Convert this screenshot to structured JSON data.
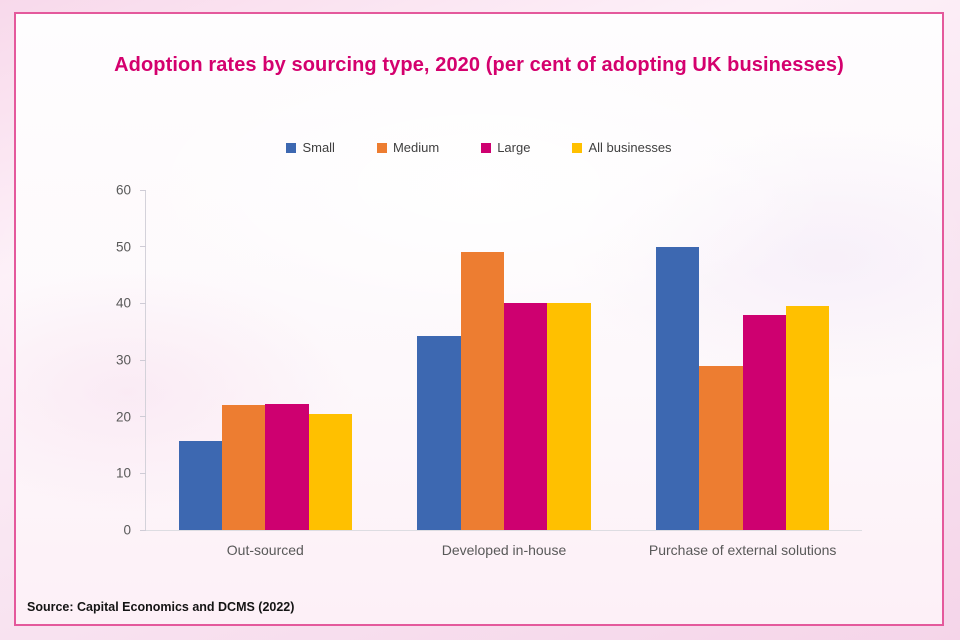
{
  "chart_data": {
    "type": "bar",
    "title": "Adoption rates by sourcing type, 2020 (per cent of adopting UK businesses)",
    "source": "Source: Capital Economics and DCMS (2022)",
    "categories": [
      "Out-sourced",
      "Developed in-house",
      "Purchase of external solutions"
    ],
    "series": [
      {
        "name": "Small",
        "color": "#3d68b1",
        "values": [
          15.7,
          34.3,
          50
        ]
      },
      {
        "name": "Medium",
        "color": "#ed7d31",
        "values": [
          22,
          49,
          29
        ]
      },
      {
        "name": "Large",
        "color": "#ce0070",
        "values": [
          22.2,
          40,
          38
        ]
      },
      {
        "name": "All businesses",
        "color": "#ffc000",
        "values": [
          20.5,
          40,
          39.5
        ]
      }
    ],
    "xlabel": "",
    "ylabel": "",
    "ylim": [
      0,
      60
    ],
    "yticks": [
      0,
      10,
      20,
      30,
      40,
      50,
      60
    ],
    "grid": false,
    "legend_position": "top",
    "colors": {
      "title": "#d4006e",
      "panel_border": "#e4599c",
      "axis_line": "#d4d2da",
      "tick_label": "#595959",
      "legend_text": "#404040"
    }
  }
}
